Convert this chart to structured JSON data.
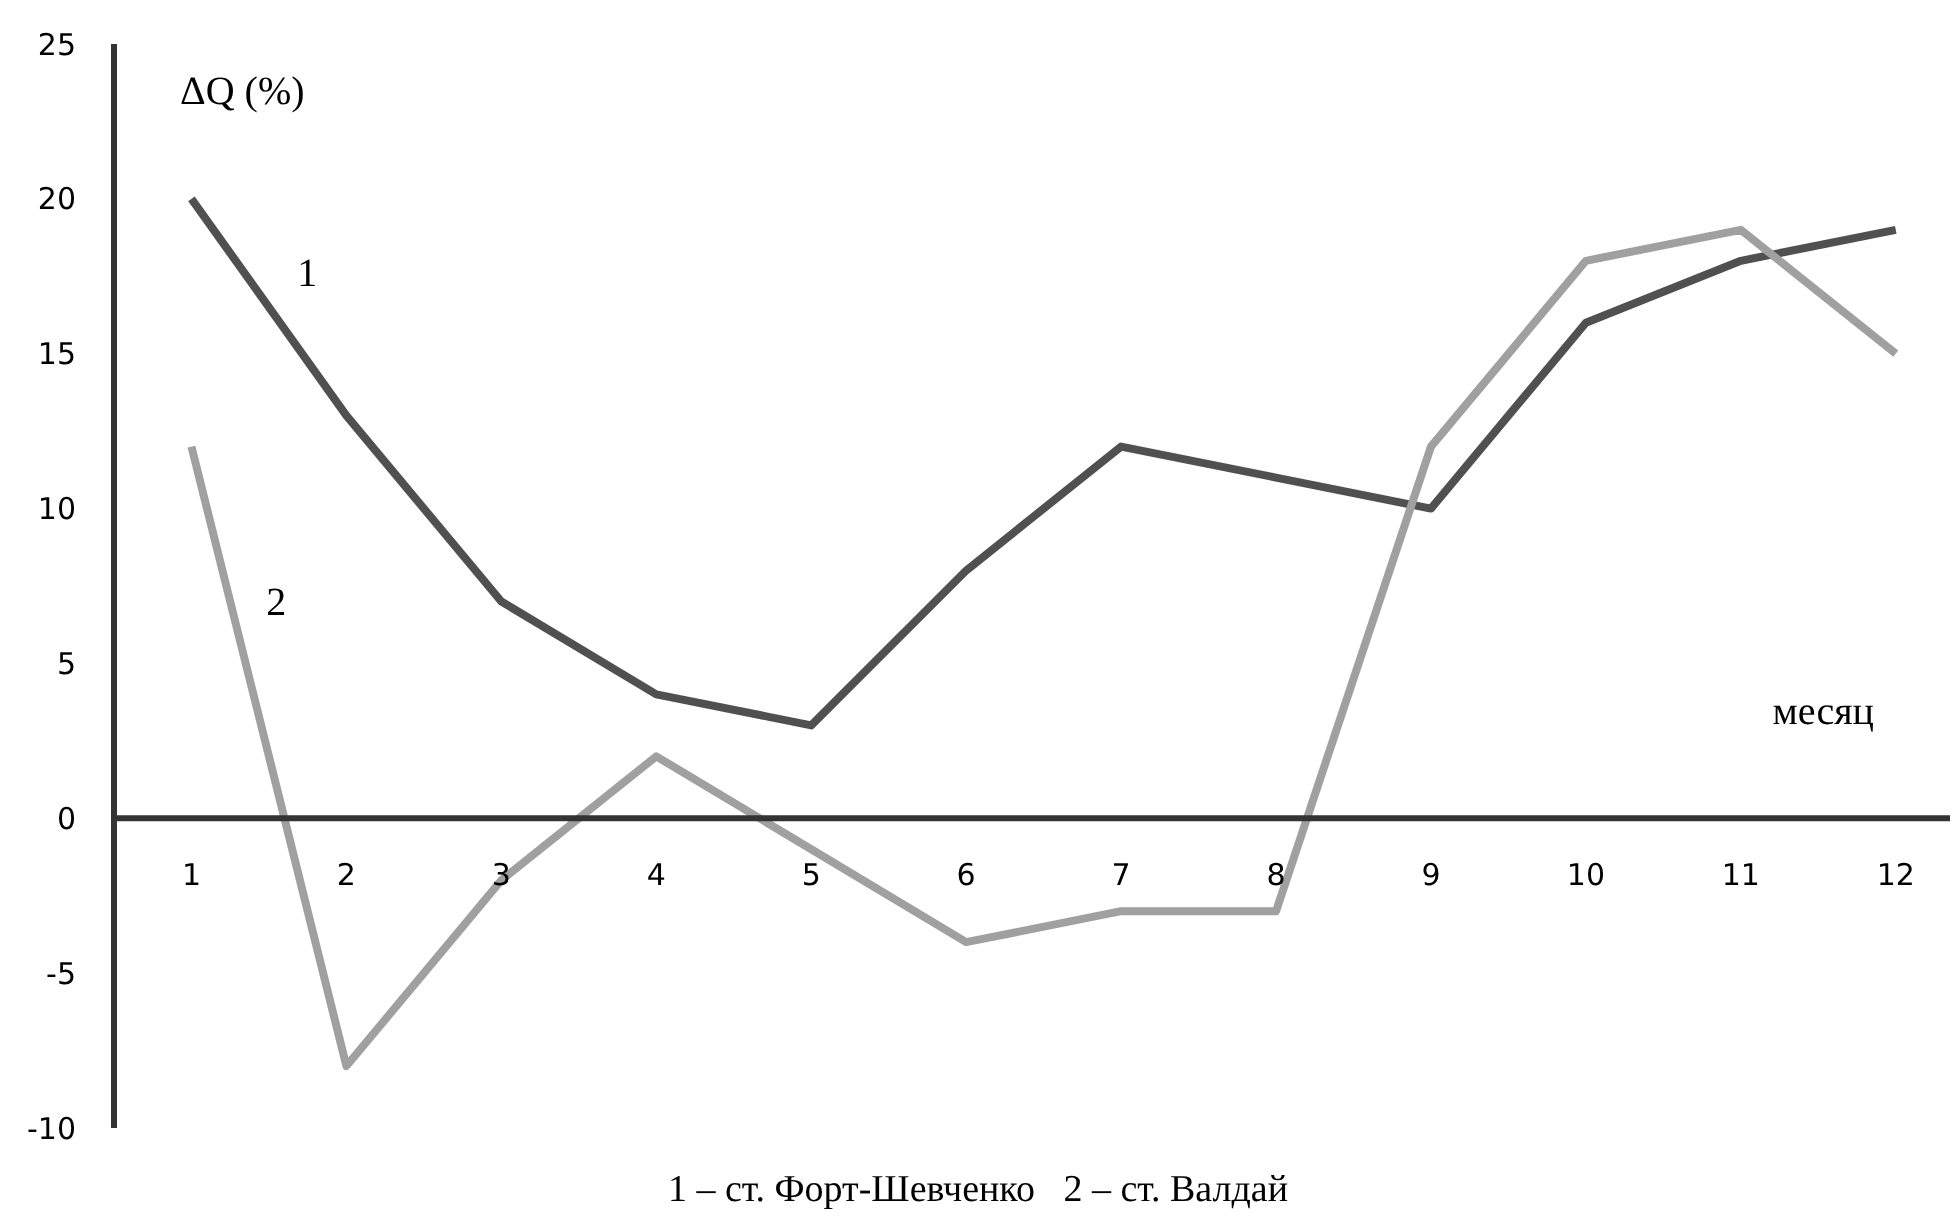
{
  "chart_data": {
    "type": "line",
    "xlabel": "месяц",
    "ylabel": "ΔQ (%)",
    "x": [
      1,
      2,
      3,
      4,
      5,
      6,
      7,
      8,
      9,
      10,
      11,
      12
    ],
    "xlim": [
      0.5,
      12.35
    ],
    "xticks": [
      1,
      2,
      3,
      4,
      5,
      6,
      7,
      8,
      9,
      10,
      11,
      12
    ],
    "series": [
      {
        "name": "1",
        "color": "#505050",
        "values": [
          20,
          13,
          7,
          4,
          3,
          8,
          12,
          11,
          10,
          16,
          18,
          19
        ]
      },
      {
        "name": "2",
        "color": "#a0a0a0",
        "values": [
          12,
          -8,
          -2,
          2,
          -1,
          -4,
          -3,
          -3,
          12,
          18,
          19,
          15
        ]
      }
    ],
    "ylim": [
      -10,
      25
    ],
    "yticks": [
      -10,
      -5,
      0,
      5,
      10,
      15,
      20,
      25
    ],
    "grid": false,
    "marker": "none",
    "line_style": "solid",
    "annotations": [
      "1 – ст. Форт-Шевченко   2 – ст. Валдай"
    ]
  }
}
